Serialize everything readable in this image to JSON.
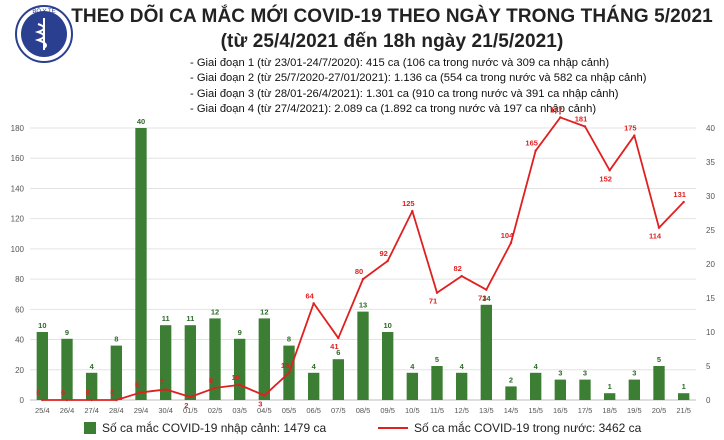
{
  "header": {
    "title_line1": "THEO DÕI CA MẮC MỚI COVID-19 THEO NGÀY TRONG THÁNG 5/2021",
    "title_line2": "(từ 25/4/2021 đến 18h ngày 21/5/2021)",
    "logo_text": "BỘ Y TẾ"
  },
  "phases": [
    "- Giai đoạn 1 (từ 23/01-24/7/2020): 415 ca (106 ca trong nước và 309 ca nhập cảnh)",
    "- Giai đoạn 2 (từ 25/7/2020-27/01/2021): 1.136 ca (554 ca trong nước và 582 ca nhập cảnh)",
    "- Giai đoạn 3 (từ 28/01-26/4/2021): 1.301 ca (910 ca trong nước và 391 ca nhập cảnh)",
    "- Giai đoạn 4 (từ 27/4/2021): 2.089 ca (1.892 ca trong nước và 197 ca nhập cảnh)"
  ],
  "legend": {
    "bar_label": "Số ca mắc COVID-19 nhập cảnh: 1479 ca",
    "line_label": "Số ca mắc COVID-19 trong nước: 3462 ca"
  },
  "colors": {
    "bar": "#3d7e35",
    "line": "#e02020",
    "grid": "#e3e3e3",
    "axis_text": "#555555"
  },
  "chart_data": {
    "type": "bar+line",
    "categories": [
      "25/4",
      "26/4",
      "27/4",
      "28/4",
      "29/4",
      "30/4",
      "01/5",
      "02/5",
      "03/5",
      "04/5",
      "05/5",
      "06/5",
      "07/5",
      "08/5",
      "09/5",
      "10/5",
      "11/5",
      "12/5",
      "13/5",
      "14/5",
      "15/5",
      "16/5",
      "17/5",
      "18/5",
      "19/5",
      "20/5",
      "21/5"
    ],
    "series": [
      {
        "name": "Số ca mắc COVID-19 nhập cảnh: 1479 ca",
        "type": "bar",
        "axis": "right",
        "values": [
          10,
          9,
          4,
          8,
          40,
          11,
          11,
          12,
          9,
          12,
          8,
          4,
          6,
          13,
          10,
          4,
          5,
          4,
          14,
          2,
          4,
          3,
          3,
          1,
          3,
          5,
          1
        ]
      },
      {
        "name": "Số ca mắc COVID-19 trong nước: 3462 ca",
        "type": "line",
        "axis": "left",
        "values": [
          0,
          0,
          0,
          0,
          5,
          7,
          2,
          8,
          10,
          3,
          18,
          64,
          41,
          80,
          92,
          125,
          71,
          82,
          73,
          104,
          165,
          187,
          181,
          152,
          175,
          114,
          131
        ]
      }
    ],
    "y_left": {
      "min": 0,
      "max": 180,
      "ticks": [
        0,
        20,
        40,
        60,
        80,
        100,
        120,
        140,
        160,
        180
      ]
    },
    "y_right": {
      "min": 0,
      "max": 40,
      "ticks": [
        0,
        5,
        10,
        15,
        20,
        25,
        30,
        35,
        40
      ]
    },
    "grid": true,
    "legend_position": "bottom"
  }
}
